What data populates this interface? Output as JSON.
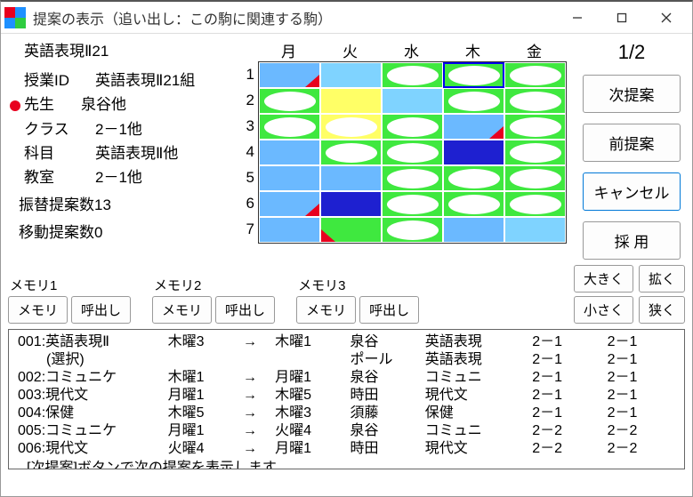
{
  "window": {
    "title": "提案の表示（追い出し：この駒に関連する駒）",
    "icon_colors": {
      "a": "#e8001e",
      "b": "#1e90ff",
      "c": "#ffd400",
      "d": "#2ecc40"
    }
  },
  "left": {
    "subtitle": "英語表現Ⅱ21",
    "rows": [
      {
        "label": "授業ID",
        "value": "英語表現Ⅱ21組",
        "dot": false
      },
      {
        "label": "先生",
        "value": "泉谷他",
        "dot": true
      },
      {
        "label": "クラス",
        "value": "2－1他",
        "dot": false
      },
      {
        "label": "科目",
        "value": "英語表現Ⅱ他",
        "dot": false
      },
      {
        "label": "教室",
        "value": "2－1他",
        "dot": false
      }
    ],
    "stats": [
      "振替提案数13",
      "移動提案数0"
    ]
  },
  "grid": {
    "days": [
      "月",
      "火",
      "水",
      "木",
      "金"
    ],
    "rows": 7,
    "colors": {
      "blue": "#6bb9ff",
      "green": "#3fe83f",
      "yellow": "#ffff66",
      "navy": "#1e20d0",
      "red": "#e8001e",
      "argaz": "#7fd3ff"
    },
    "cells": [
      [
        {
          "bg": "blue",
          "tri": "br",
          "tc": "red"
        },
        {
          "bg": "argaz"
        },
        {
          "bg": "green",
          "oval": true
        },
        {
          "bg": "green",
          "oval": true,
          "sel": true
        },
        {
          "bg": "green",
          "oval": true
        }
      ],
      [
        {
          "bg": "green",
          "oval": true
        },
        {
          "bg": "yellow"
        },
        {
          "bg": "argaz"
        },
        {
          "bg": "green",
          "oval": true
        },
        {
          "bg": "green",
          "oval": true
        }
      ],
      [
        {
          "bg": "green",
          "oval": true
        },
        {
          "bg": "yellow",
          "oval": true
        },
        {
          "bg": "green",
          "oval": true
        },
        {
          "bg": "blue",
          "tri": "br",
          "tc": "red"
        },
        {
          "bg": "green",
          "oval": true
        }
      ],
      [
        {
          "bg": "blue"
        },
        {
          "bg": "green",
          "oval": true
        },
        {
          "bg": "green",
          "oval": true
        },
        {
          "bg": "navy"
        },
        {
          "bg": "green",
          "oval": true
        }
      ],
      [
        {
          "bg": "blue"
        },
        {
          "bg": "blue"
        },
        {
          "bg": "green",
          "oval": true
        },
        {
          "bg": "green",
          "oval": true
        },
        {
          "bg": "green",
          "oval": true
        }
      ],
      [
        {
          "bg": "blue",
          "tri": "br",
          "tc": "red"
        },
        {
          "bg": "navy"
        },
        {
          "bg": "green",
          "oval": true
        },
        {
          "bg": "green",
          "oval": true
        },
        {
          "bg": "green",
          "oval": true
        }
      ],
      [
        {
          "bg": "blue"
        },
        {
          "bg": "green",
          "tri": "bl",
          "tc": "red"
        },
        {
          "bg": "green",
          "oval": true
        },
        {
          "bg": "blue"
        },
        {
          "bg": "argaz"
        }
      ]
    ]
  },
  "right": {
    "pager": "1/2",
    "buttons": [
      "次提案",
      "前提案",
      "キャンセル",
      "採  用"
    ],
    "focus_index": 2
  },
  "mem": {
    "groups": [
      {
        "label": "メモリ1",
        "btns": [
          "メモリ",
          "呼出し"
        ]
      },
      {
        "label": "メモリ2",
        "btns": [
          "メモリ",
          "呼出し"
        ]
      },
      {
        "label": "メモリ3",
        "btns": [
          "メモリ",
          "呼出し"
        ]
      }
    ],
    "sizers": [
      [
        "大きく",
        "小さく"
      ],
      [
        "拡く",
        "狭く"
      ]
    ]
  },
  "log": {
    "rows": [
      [
        "001:英語表現Ⅱ",
        "木曜3",
        "→",
        "木曜1",
        "泉谷",
        "英語表現",
        "2－1",
        "2－1"
      ],
      [
        "      (選択)",
        "",
        "",
        "",
        "ポール",
        "英語表現",
        "2－1",
        "2－1"
      ],
      [
        "002:コミュニケ",
        "木曜1",
        "→",
        "月曜1",
        "泉谷",
        "コミュニ",
        "2－1",
        "2－1"
      ],
      [
        "003:現代文",
        "月曜1",
        "→",
        "木曜5",
        "時田",
        "現代文",
        "2－1",
        "2－1"
      ],
      [
        "004:保健",
        "木曜5",
        "→",
        "木曜3",
        "須藤",
        "保健",
        "2－1",
        "2－1"
      ],
      [
        "005:コミュニケ",
        "月曜1",
        "→",
        "火曜4",
        "泉谷",
        "コミュニ",
        "2－2",
        "2－2"
      ],
      [
        "006:現代文",
        "火曜4",
        "→",
        "月曜1",
        "時田",
        "現代文",
        "2－2",
        "2－2"
      ]
    ],
    "footer": "[次提案]ボタンで次の提案を表示します"
  }
}
